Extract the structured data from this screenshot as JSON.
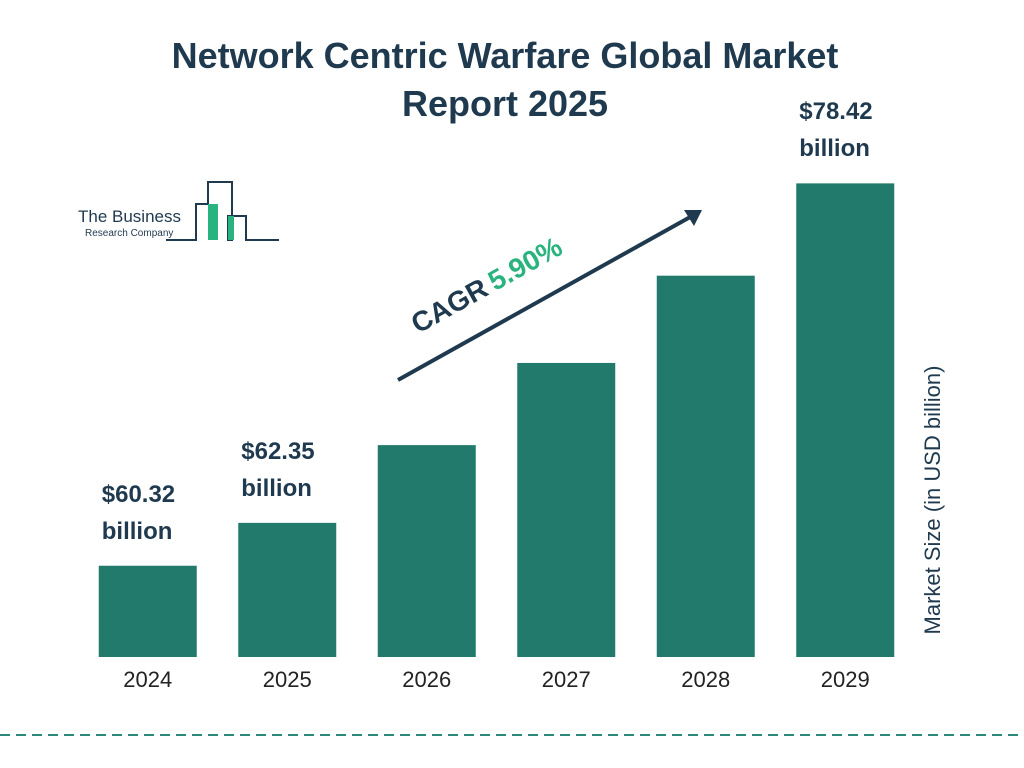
{
  "logo": {
    "line1": "The Business",
    "line2": "Research Company"
  },
  "chart_data": {
    "type": "bar",
    "title": "Network Centric Warfare Global Market Report 2025",
    "categories": [
      "2024",
      "2025",
      "2026",
      "2027",
      "2028",
      "2029"
    ],
    "values": [
      60.32,
      62.35,
      66.03,
      69.92,
      74.05,
      78.42
    ],
    "value_labels": [
      "$60.32 billion",
      "$62.35 billion",
      null,
      null,
      null,
      "$78.42 billion"
    ],
    "color": "#217a6b",
    "y_label": "Market Size (in USD billion)",
    "annotation": {
      "label": "CAGR",
      "value": "5.90%"
    },
    "ylim": [
      56,
      80
    ]
  }
}
